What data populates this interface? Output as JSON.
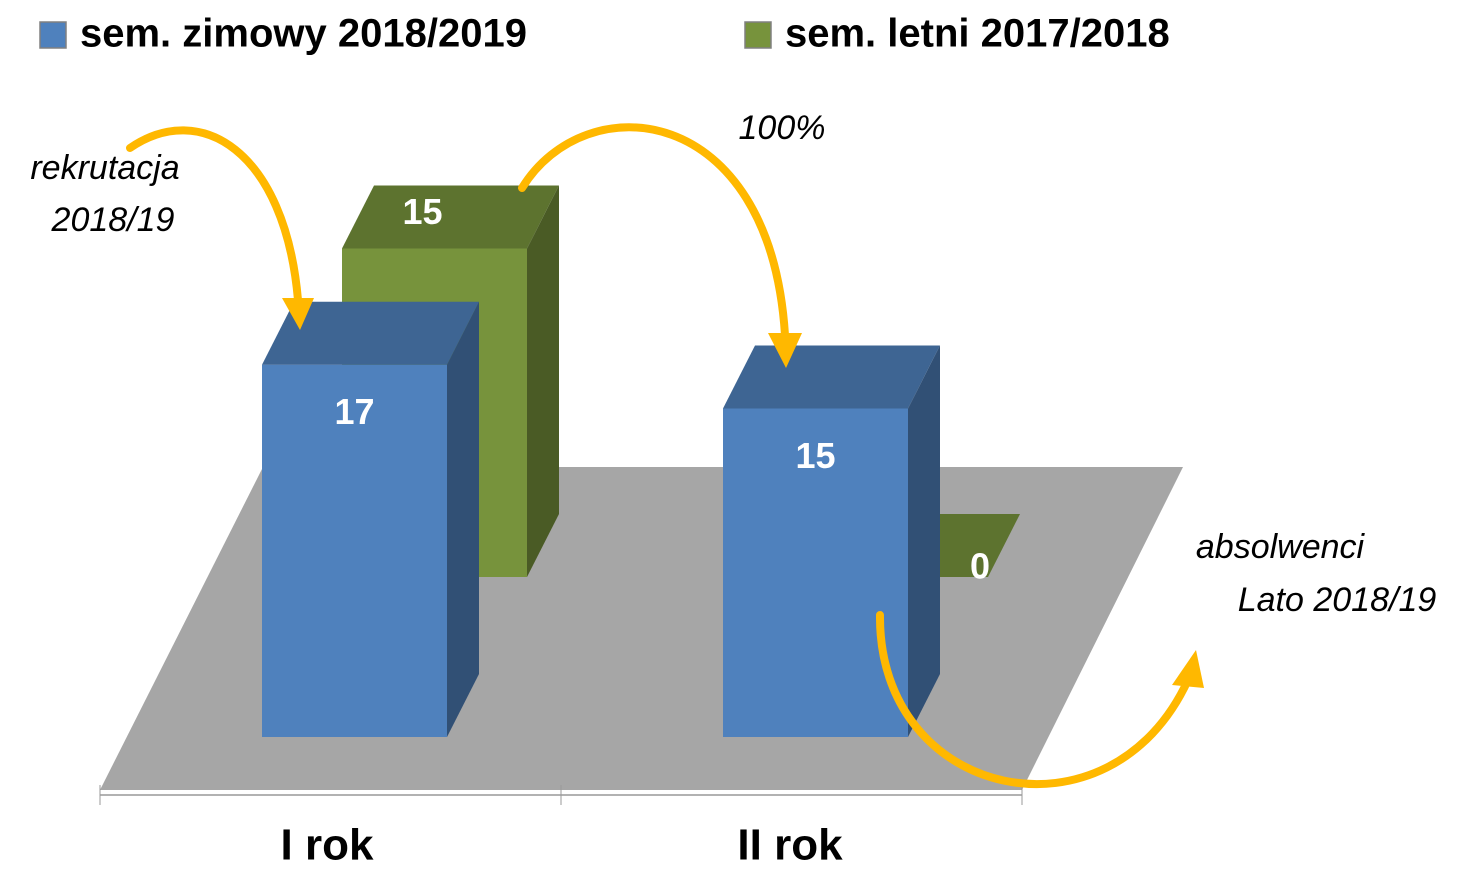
{
  "chart_data": {
    "type": "bar",
    "categories": [
      "I rok",
      "II rok"
    ],
    "series": [
      {
        "name": "sem. zimowy 2018/2019",
        "color": "#4f81bd",
        "values": [
          17,
          15
        ]
      },
      {
        "name": "sem. letni 2017/2018",
        "color": "#77933c",
        "values": [
          15,
          0
        ]
      }
    ],
    "annotations": [
      {
        "lines": [
          "rekrutacja",
          "2018/19"
        ]
      },
      {
        "lines": [
          "100%"
        ]
      },
      {
        "lines": [
          "absolwenci",
          "Lato 2018/19"
        ]
      }
    ]
  }
}
